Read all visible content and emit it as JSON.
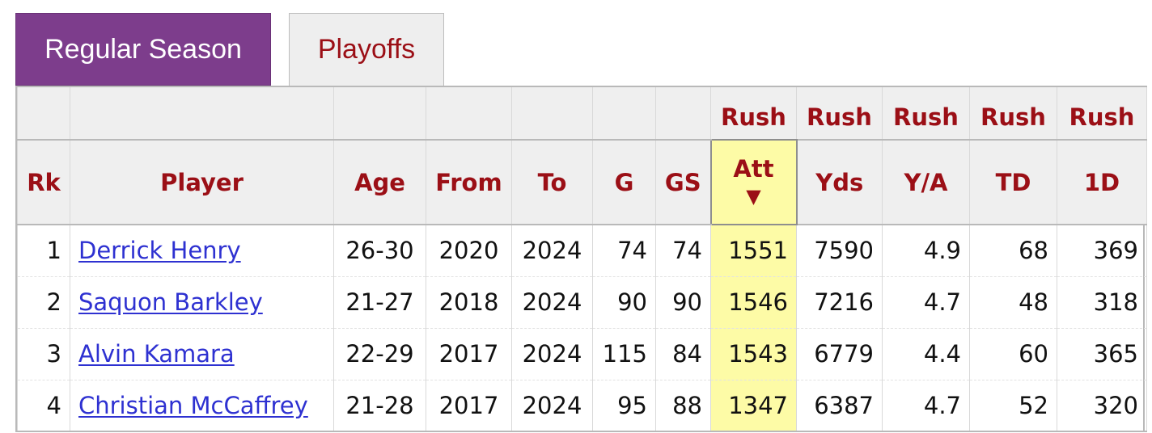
{
  "tabs": [
    {
      "label": "Regular Season",
      "active": true
    },
    {
      "label": "Playoffs",
      "active": false
    }
  ],
  "table": {
    "over_headers": [
      "",
      "",
      "",
      "",
      "",
      "",
      "",
      "Rush",
      "Rush",
      "Rush",
      "Rush",
      "Rush"
    ],
    "headers": [
      "Rk",
      "Player",
      "Age",
      "From",
      "To",
      "G",
      "GS",
      "Att",
      "Yds",
      "Y/A",
      "TD",
      "1D"
    ],
    "sort_indicator": "▼",
    "sorted_column": "Att",
    "rows": [
      {
        "rk": "1",
        "player": "Derrick Henry",
        "age": "26-30",
        "from": "2020",
        "to": "2024",
        "g": "74",
        "gs": "74",
        "att": "1551",
        "yds": "7590",
        "ya": "4.9",
        "td": "68",
        "fd": "369"
      },
      {
        "rk": "2",
        "player": "Saquon Barkley",
        "age": "21-27",
        "from": "2018",
        "to": "2024",
        "g": "90",
        "gs": "90",
        "att": "1546",
        "yds": "7216",
        "ya": "4.7",
        "td": "48",
        "fd": "318"
      },
      {
        "rk": "3",
        "player": "Alvin Kamara",
        "age": "22-29",
        "from": "2017",
        "to": "2024",
        "g": "115",
        "gs": "84",
        "att": "1543",
        "yds": "6779",
        "ya": "4.4",
        "td": "60",
        "fd": "365"
      },
      {
        "rk": "4",
        "player": "Christian McCaffrey",
        "age": "21-28",
        "from": "2017",
        "to": "2024",
        "g": "95",
        "gs": "88",
        "att": "1347",
        "yds": "6387",
        "ya": "4.7",
        "td": "52",
        "fd": "320"
      }
    ]
  },
  "colors": {
    "tab_active_bg": "#7d3d8c",
    "header_text": "#9b0f16",
    "link": "#2e31d1",
    "sorted_highlight": "#fdfba6"
  }
}
